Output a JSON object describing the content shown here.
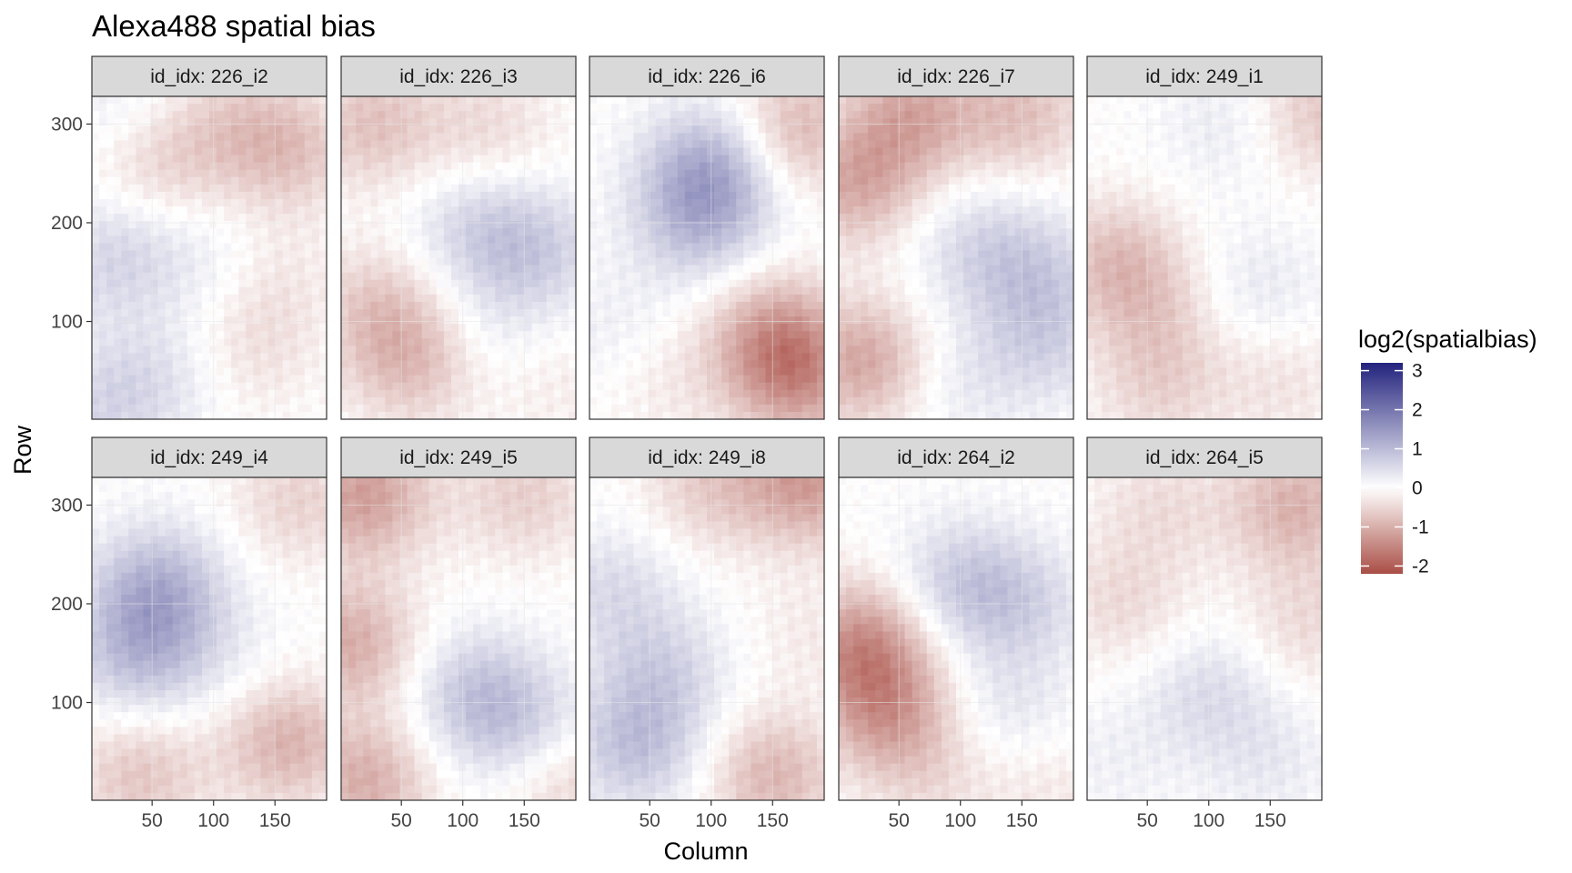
{
  "chart_data": {
    "type": "heatmap",
    "title": "Alexa488 spatial bias",
    "xlabel": "Column",
    "ylabel": "Row",
    "facet_var": "id_idx",
    "facet_label_template": "id_idx: {id}",
    "facet_layout": {
      "nrow": 2,
      "ncol": 5
    },
    "xlim": [
      1,
      192
    ],
    "ylim": [
      1,
      328
    ],
    "x_ticks": [
      50,
      100,
      150
    ],
    "y_ticks": [
      100,
      200,
      300
    ],
    "grid": true,
    "legend": {
      "title": "log2(spatialbias)",
      "placement": "right",
      "range": [
        -2.2,
        3.2
      ],
      "ticks": [
        3,
        2,
        1,
        0,
        -1,
        -2
      ],
      "tick_labels": [
        "3",
        "2",
        "1",
        "0",
        "-1",
        "-2"
      ],
      "low_color": "#a94e45",
      "mid_color": "#ffffff",
      "high_color": "#23237e",
      "midpoint": 0
    },
    "panels": [
      {
        "id": "226_i2",
        "label": "id_idx: 226_i2",
        "pattern": [
          {
            "col": 30,
            "row": 320,
            "value": 0.35
          },
          {
            "col": 55,
            "row": 265,
            "value": -0.55
          },
          {
            "col": 110,
            "row": 305,
            "value": -0.4
          },
          {
            "col": 160,
            "row": 275,
            "value": -0.75
          },
          {
            "col": 20,
            "row": 165,
            "value": 0.6
          },
          {
            "col": 100,
            "row": 160,
            "value": 0.25
          },
          {
            "col": 150,
            "row": 140,
            "value": -0.3
          },
          {
            "col": 60,
            "row": 45,
            "value": 0.35
          },
          {
            "col": 130,
            "row": 70,
            "value": -0.35
          },
          {
            "col": 10,
            "row": 15,
            "value": 0.5
          }
        ]
      },
      {
        "id": "226_i3",
        "label": "id_idx: 226_i3",
        "pattern": [
          {
            "col": 25,
            "row": 300,
            "value": -0.75
          },
          {
            "col": 120,
            "row": 295,
            "value": -0.45
          },
          {
            "col": 110,
            "row": 195,
            "value": 0.55
          },
          {
            "col": 160,
            "row": 170,
            "value": 0.65
          },
          {
            "col": 30,
            "row": 115,
            "value": -0.6
          },
          {
            "col": 60,
            "row": 60,
            "value": -0.8
          },
          {
            "col": 120,
            "row": 85,
            "value": 0.3
          },
          {
            "col": 170,
            "row": 40,
            "value": -0.25
          }
        ]
      },
      {
        "id": "226_i6",
        "label": "id_idx: 226_i6",
        "pattern": [
          {
            "col": 100,
            "row": 255,
            "value": 1.1
          },
          {
            "col": 90,
            "row": 200,
            "value": 0.8
          },
          {
            "col": 170,
            "row": 295,
            "value": -0.9
          },
          {
            "col": 20,
            "row": 90,
            "value": 0.25
          },
          {
            "col": 150,
            "row": 90,
            "value": -0.9
          },
          {
            "col": 170,
            "row": 45,
            "value": -1.2
          },
          {
            "col": 60,
            "row": 40,
            "value": -0.25
          }
        ]
      },
      {
        "id": "226_i7",
        "label": "id_idx: 226_i7",
        "pattern": [
          {
            "col": 60,
            "row": 310,
            "value": -1.0
          },
          {
            "col": 150,
            "row": 310,
            "value": -0.75
          },
          {
            "col": 15,
            "row": 240,
            "value": -1.0
          },
          {
            "col": 110,
            "row": 180,
            "value": 0.45
          },
          {
            "col": 160,
            "row": 150,
            "value": 0.6
          },
          {
            "col": 20,
            "row": 60,
            "value": -1.1
          },
          {
            "col": 100,
            "row": 40,
            "value": 0.3
          },
          {
            "col": 170,
            "row": 80,
            "value": 0.55
          }
        ]
      },
      {
        "id": "249_i1",
        "label": "id_idx: 249_i1",
        "pattern": [
          {
            "col": 120,
            "row": 300,
            "value": 0.35
          },
          {
            "col": 185,
            "row": 310,
            "value": -0.7
          },
          {
            "col": 25,
            "row": 160,
            "value": -0.8
          },
          {
            "col": 60,
            "row": 100,
            "value": -0.45
          },
          {
            "col": 140,
            "row": 130,
            "value": 0.35
          },
          {
            "col": 160,
            "row": 40,
            "value": -0.35
          },
          {
            "col": 60,
            "row": 30,
            "value": -0.45
          }
        ]
      },
      {
        "id": "249_i4",
        "label": "id_idx: 249_i4",
        "pattern": [
          {
            "col": 55,
            "row": 215,
            "value": 1.05
          },
          {
            "col": 40,
            "row": 150,
            "value": 0.85
          },
          {
            "col": 170,
            "row": 305,
            "value": -0.55
          },
          {
            "col": 160,
            "row": 60,
            "value": -0.95
          },
          {
            "col": 40,
            "row": 25,
            "value": -0.7
          },
          {
            "col": 110,
            "row": 140,
            "value": 0.2
          }
        ]
      },
      {
        "id": "249_i5",
        "label": "id_idx: 249_i5",
        "pattern": [
          {
            "col": 20,
            "row": 310,
            "value": -1.2
          },
          {
            "col": 150,
            "row": 310,
            "value": -0.6
          },
          {
            "col": 10,
            "row": 160,
            "value": -1.0
          },
          {
            "col": 110,
            "row": 110,
            "value": 0.75
          },
          {
            "col": 150,
            "row": 70,
            "value": 0.65
          },
          {
            "col": 20,
            "row": 20,
            "value": -1.0
          },
          {
            "col": 180,
            "row": 20,
            "value": -0.6
          }
        ]
      },
      {
        "id": "249_i8",
        "label": "id_idx: 249_i8",
        "pattern": [
          {
            "col": 100,
            "row": 320,
            "value": -0.6
          },
          {
            "col": 180,
            "row": 325,
            "value": -1.2
          },
          {
            "col": 20,
            "row": 215,
            "value": 0.5
          },
          {
            "col": 60,
            "row": 130,
            "value": 0.6
          },
          {
            "col": 40,
            "row": 55,
            "value": 0.85
          },
          {
            "col": 150,
            "row": 25,
            "value": -0.9
          },
          {
            "col": 185,
            "row": 170,
            "value": -0.25
          }
        ]
      },
      {
        "id": "264_i2",
        "label": "id_idx: 264_i2",
        "pattern": [
          {
            "col": 20,
            "row": 160,
            "value": -1.3
          },
          {
            "col": 40,
            "row": 90,
            "value": -1.1
          },
          {
            "col": 100,
            "row": 220,
            "value": 0.7
          },
          {
            "col": 150,
            "row": 200,
            "value": 0.55
          },
          {
            "col": 140,
            "row": 90,
            "value": 0.4
          },
          {
            "col": 80,
            "row": 25,
            "value": -0.35
          },
          {
            "col": 170,
            "row": 20,
            "value": -0.3
          }
        ]
      },
      {
        "id": "264_i5",
        "label": "id_idx: 264_i5",
        "pattern": [
          {
            "col": 170,
            "row": 300,
            "value": -0.95
          },
          {
            "col": 60,
            "row": 300,
            "value": -0.4
          },
          {
            "col": 30,
            "row": 200,
            "value": -0.45
          },
          {
            "col": 100,
            "row": 110,
            "value": 0.5
          },
          {
            "col": 150,
            "row": 40,
            "value": 0.3
          },
          {
            "col": 180,
            "row": 180,
            "value": -0.45
          },
          {
            "col": 20,
            "row": 40,
            "value": 0.2
          }
        ]
      }
    ]
  }
}
